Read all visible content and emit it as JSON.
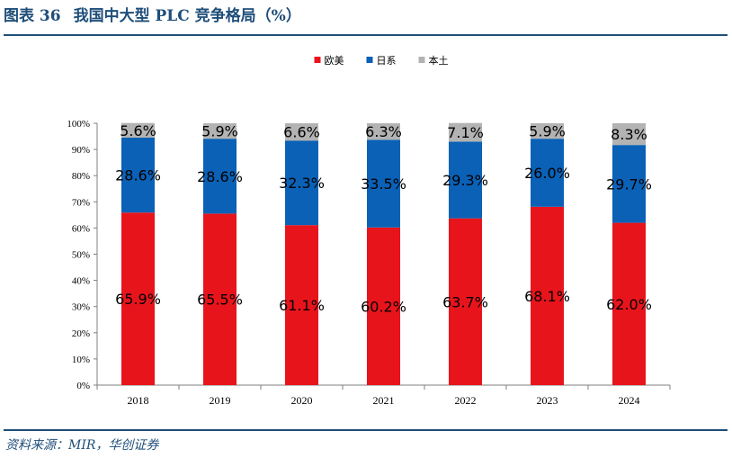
{
  "header": {
    "figure_no": "图表 36",
    "title": "我国中大型 PLC 竞争格局（%）"
  },
  "source": "资料来源：MIR，华创证券",
  "chart_data": {
    "type": "bar",
    "stacked": true,
    "percent": true,
    "categories": [
      "2018",
      "2019",
      "2020",
      "2021",
      "2022",
      "2023",
      "2024"
    ],
    "series": [
      {
        "name": "欧美",
        "color": "#e8141c",
        "values": [
          65.9,
          65.5,
          61.1,
          60.2,
          63.7,
          68.1,
          62.0
        ],
        "labels": [
          "65.9%",
          "65.5%",
          "61.1%",
          "60.2%",
          "63.7%",
          "68.1%",
          "62.0%"
        ]
      },
      {
        "name": "日系",
        "color": "#0a61b6",
        "values": [
          28.6,
          28.6,
          32.3,
          33.5,
          29.3,
          26.0,
          29.7
        ],
        "labels": [
          "28.6%",
          "28.6%",
          "32.3%",
          "33.5%",
          "29.3%",
          "26.0%",
          "29.7%"
        ]
      },
      {
        "name": "本土",
        "color": "#b3b3b3",
        "values": [
          5.6,
          5.9,
          6.6,
          6.3,
          7.1,
          5.9,
          8.3
        ],
        "labels": [
          "5.6%",
          "5.9%",
          "6.6%",
          "6.3%",
          "7.1%",
          "5.9%",
          "8.3%"
        ]
      }
    ],
    "yticks": [
      "0%",
      "10%",
      "20%",
      "30%",
      "40%",
      "50%",
      "60%",
      "70%",
      "80%",
      "90%",
      "100%"
    ],
    "ylim": [
      0,
      100
    ],
    "legend_position": "top-center",
    "grid": false
  }
}
